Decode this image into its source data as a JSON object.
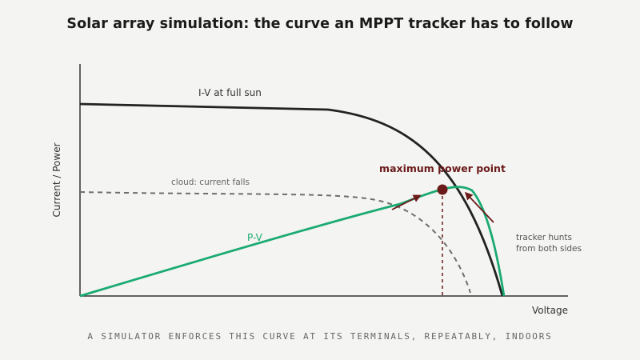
{
  "title": "Solar array simulation: the curve an MPPT tracker has to follow",
  "axes": {
    "y_label": "Current / Power",
    "x_label": "Voltage"
  },
  "curves": {
    "iv_full_sun": "I-V at full sun",
    "iv_cloud": "cloud: current falls",
    "pv": "P-V"
  },
  "annotations": {
    "mpp": "maximum power point",
    "tracker_line1": "tracker hunts",
    "tracker_line2": "from both sides"
  },
  "caption": "A SIMULATOR ENFORCES THIS CURVE AT ITS TERMINALS, REPEATABLY, INDOORS",
  "colors": {
    "iv_full_sun": "#222222",
    "iv_cloud": "#6e6e6e",
    "pv": "#1aaa72",
    "mpp": "#6b1a1a",
    "axis": "#333333",
    "background": "#f4f4f2"
  }
}
